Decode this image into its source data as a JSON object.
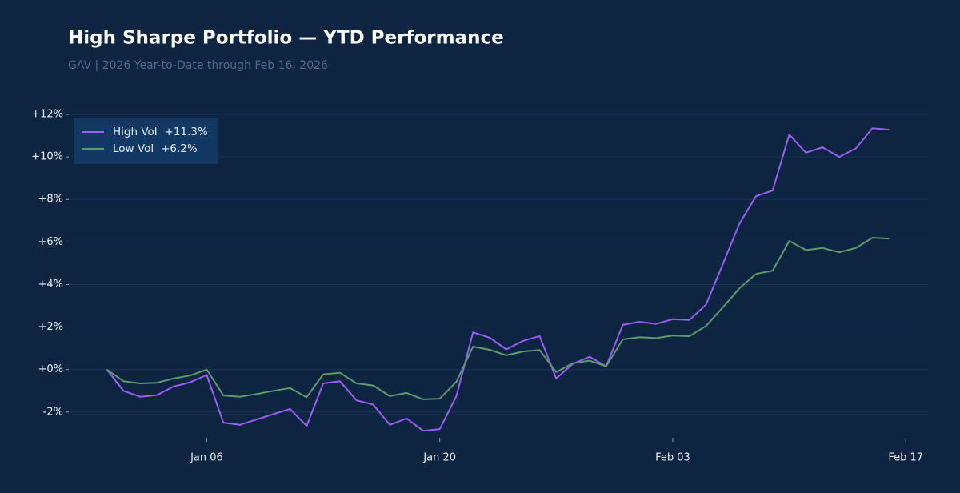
{
  "chart_data": {
    "type": "line",
    "title": "High Sharpe Portfolio — YTD Performance",
    "subtitle": "GAV | 2026 Year-to-Date through Feb 16, 2026",
    "x": [
      "Dec 31",
      "Jan 01",
      "Jan 02",
      "Jan 03",
      "Jan 04",
      "Jan 05",
      "Jan 06",
      "Jan 07",
      "Jan 08",
      "Jan 09",
      "Jan 10",
      "Jan 11",
      "Jan 12",
      "Jan 13",
      "Jan 14",
      "Jan 15",
      "Jan 16",
      "Jan 17",
      "Jan 18",
      "Jan 19",
      "Jan 20",
      "Jan 21",
      "Jan 22",
      "Jan 23",
      "Jan 24",
      "Jan 25",
      "Jan 26",
      "Jan 27",
      "Jan 28",
      "Jan 29",
      "Jan 30",
      "Jan 31",
      "Feb 01",
      "Feb 02",
      "Feb 03",
      "Feb 04",
      "Feb 05",
      "Feb 06",
      "Feb 07",
      "Feb 08",
      "Feb 09",
      "Feb 10",
      "Feb 11",
      "Feb 12",
      "Feb 13",
      "Feb 14",
      "Feb 15",
      "Feb 16"
    ],
    "series": [
      {
        "name": "High Vol",
        "label": "+11.3%",
        "color": "#9b5cf6",
        "values": [
          0,
          -1.0,
          -1.28,
          -1.2,
          -0.8,
          -0.6,
          -0.25,
          -2.5,
          -2.6,
          -2.35,
          -2.1,
          -1.85,
          -2.65,
          -0.65,
          -0.55,
          -1.45,
          -1.65,
          -2.6,
          -2.3,
          -2.88,
          -2.8,
          -1.25,
          1.75,
          1.5,
          0.95,
          1.35,
          1.58,
          -0.42,
          0.27,
          0.6,
          0.15,
          2.1,
          2.25,
          2.15,
          2.37,
          2.33,
          3.05,
          4.95,
          6.85,
          8.15,
          8.42,
          11.05,
          10.2,
          10.45,
          10.0,
          10.4,
          11.35,
          11.28
        ]
      },
      {
        "name": "Low Vol",
        "label": "+6.2%",
        "color": "#5e9a6c",
        "values": [
          0,
          -0.55,
          -0.65,
          -0.62,
          -0.42,
          -0.28,
          0,
          -1.22,
          -1.28,
          -1.15,
          -1.0,
          -0.87,
          -1.3,
          -0.22,
          -0.15,
          -0.65,
          -0.75,
          -1.25,
          -1.1,
          -1.4,
          -1.37,
          -0.57,
          1.08,
          0.93,
          0.67,
          0.85,
          0.92,
          -0.12,
          0.3,
          0.42,
          0.15,
          1.42,
          1.52,
          1.48,
          1.6,
          1.57,
          2.05,
          2.92,
          3.82,
          4.5,
          4.65,
          6.05,
          5.62,
          5.72,
          5.52,
          5.72,
          6.2,
          6.16
        ]
      }
    ],
    "xlim": [
      "Dec 29",
      "Feb 18"
    ],
    "xticks": [
      "Jan 06",
      "Jan 20",
      "Feb 03",
      "Feb 17"
    ],
    "ylim": [
      -3.7,
      12.3
    ],
    "yticks": [
      {
        "value": -2,
        "label": "-2%"
      },
      {
        "value": 0,
        "label": "+0%"
      },
      {
        "value": 2,
        "label": "+2%"
      },
      {
        "value": 4,
        "label": "+4%"
      },
      {
        "value": 6,
        "label": "+6%"
      },
      {
        "value": 8,
        "label": "+8%"
      },
      {
        "value": 10,
        "label": "+10%"
      },
      {
        "value": 12,
        "label": "+12%"
      }
    ],
    "grid": true,
    "legend": "upper left"
  }
}
